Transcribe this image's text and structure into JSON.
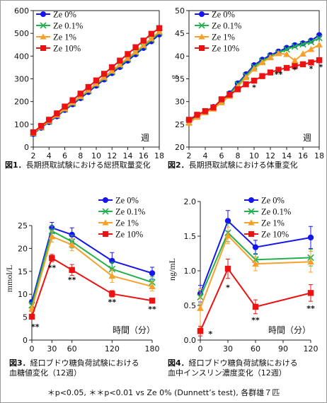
{
  "colors": {
    "Ze 0%": "#1515ee",
    "Ze 0.1%": "#22b14c",
    "Ze 1%": "#f7a02c",
    "Ze 10%": "#ee1111"
  },
  "chart_data": [
    {
      "id": "fig1",
      "type": "line",
      "title": "",
      "xlabel": "週",
      "ylabel": "",
      "xlim": [
        2,
        18
      ],
      "ylim": [
        0,
        600
      ],
      "xticks": [
        2,
        4,
        6,
        8,
        10,
        12,
        14,
        16,
        18
      ],
      "yticks": [
        0,
        100,
        200,
        300,
        400,
        500,
        600
      ],
      "grid": false,
      "legend": "top-left",
      "x": [
        2,
        3,
        4,
        5,
        6,
        7,
        8,
        9,
        10,
        11,
        12,
        13,
        14,
        15,
        16,
        17,
        18
      ],
      "series": [
        {
          "name": "Ze 0%",
          "marker": "circle",
          "values": [
            58,
            85,
            110,
            135,
            163,
            188,
            215,
            242,
            270,
            297,
            325,
            352,
            380,
            408,
            436,
            465,
            495
          ]
        },
        {
          "name": "Ze 0.1%",
          "marker": "x",
          "values": [
            60,
            87,
            112,
            138,
            166,
            192,
            219,
            247,
            275,
            302,
            330,
            358,
            386,
            414,
            442,
            471,
            502
          ]
        },
        {
          "name": "Ze 1%",
          "marker": "triangle",
          "values": [
            62,
            89,
            115,
            141,
            169,
            196,
            223,
            251,
            279,
            307,
            335,
            363,
            391,
            419,
            448,
            477,
            508
          ]
        },
        {
          "name": "Ze 10%",
          "marker": "square",
          "values": [
            65,
            93,
            120,
            148,
            178,
            206,
            235,
            264,
            293,
            322,
            351,
            380,
            409,
            439,
            468,
            498,
            523
          ]
        }
      ],
      "annotations": []
    },
    {
      "id": "fig2",
      "type": "line",
      "title": "",
      "xlabel": "週",
      "ylabel": "g",
      "xlim": [
        2,
        18
      ],
      "ylim": [
        20,
        50
      ],
      "xticks": [
        2,
        4,
        6,
        8,
        10,
        12,
        14,
        16,
        18
      ],
      "yticks": [
        20,
        25,
        30,
        35,
        40,
        45,
        50
      ],
      "grid": false,
      "legend": "top-left",
      "x": [
        1,
        2,
        3,
        4,
        5,
        6,
        7,
        8,
        9,
        10,
        11,
        12,
        13,
        14,
        15,
        16,
        17,
        18
      ],
      "series": [
        {
          "name": "Ze 0%",
          "marker": "circle",
          "values": [
            23.2,
            25.8,
            27.0,
            27.8,
            28.8,
            30.3,
            31.8,
            34.0,
            36.0,
            38.0,
            39.2,
            40.2,
            41.0,
            41.8,
            42.4,
            42.8,
            43.4,
            44.6
          ]
        },
        {
          "name": "Ze 0.1%",
          "marker": "x",
          "values": [
            23.2,
            25.5,
            26.8,
            27.8,
            28.7,
            30.2,
            31.6,
            33.8,
            35.7,
            37.7,
            38.9,
            39.9,
            40.7,
            41.5,
            42.1,
            42.6,
            43.1,
            44.0
          ]
        },
        {
          "name": "Ze 1%",
          "marker": "triangle",
          "values": [
            23.1,
            25.3,
            26.6,
            27.6,
            28.4,
            29.8,
            31.2,
            33.3,
            35.3,
            37.2,
            38.6,
            39.7,
            40.6,
            40.4,
            39.0,
            40.5,
            41.5,
            42.5
          ]
        },
        {
          "name": "Ze 10%",
          "marker": "square",
          "values": [
            23.3,
            26.0,
            27.1,
            27.9,
            28.7,
            30.5,
            31.5,
            32.7,
            33.8,
            34.6,
            35.6,
            36.4,
            37.0,
            37.4,
            37.8,
            38.2,
            38.6,
            39.1
          ]
        }
      ],
      "annotations": [
        {
          "x": 10,
          "y": 32.5,
          "text": "*"
        },
        {
          "x": 13,
          "y": 35.4,
          "text": "**"
        },
        {
          "x": 15,
          "y": 36.4,
          "text": "*"
        },
        {
          "x": 17,
          "y": 36.6,
          "text": "*"
        },
        {
          "x": 18.2,
          "y": 37.0,
          "text": "*"
        }
      ]
    },
    {
      "id": "fig3",
      "type": "line",
      "title": "",
      "xlabel": "時間（分）",
      "ylabel": "mmol/L",
      "xlim": [
        0,
        180
      ],
      "ylim": [
        0,
        25
      ],
      "xticks": [
        0,
        30,
        60,
        120,
        180
      ],
      "yticks": [
        0,
        5,
        10,
        15,
        20,
        25
      ],
      "grid": false,
      "legend": "top-right",
      "x": [
        0,
        30,
        60,
        120,
        180
      ],
      "series": [
        {
          "name": "Ze 0%",
          "marker": "circle",
          "values": [
            8.3,
            24.5,
            23.0,
            17.3,
            14.6
          ],
          "errors": [
            0.5,
            1.2,
            1.5,
            1.8,
            1.3
          ]
        },
        {
          "name": "Ze 0.1%",
          "marker": "x",
          "values": [
            7.6,
            23.8,
            21.5,
            15.5,
            12.6
          ],
          "errors": [
            0.6,
            1.1,
            1.4,
            1.5,
            1.2
          ]
        },
        {
          "name": "Ze 1%",
          "marker": "triangle",
          "values": [
            6.8,
            22.6,
            20.8,
            14.0,
            11.7
          ],
          "errors": [
            0.6,
            1.2,
            1.3,
            1.4,
            1.0
          ]
        },
        {
          "name": "Ze 10%",
          "marker": "square",
          "values": [
            5.1,
            17.9,
            15.3,
            10.1,
            8.6
          ],
          "errors": [
            0.4,
            0.8,
            1.2,
            0.7,
            0.5
          ]
        }
      ],
      "annotations": [
        {
          "x": 5,
          "y": 2.3,
          "text": "**"
        },
        {
          "x": 30,
          "y": 15.2,
          "text": "**"
        },
        {
          "x": 60,
          "y": 12.6,
          "text": "**"
        },
        {
          "x": 120,
          "y": 7.7,
          "text": "**"
        },
        {
          "x": 180,
          "y": 6.2,
          "text": "**"
        }
      ]
    },
    {
      "id": "fig4",
      "type": "line",
      "title": "",
      "xlabel": "時間（分）",
      "ylabel": "ng/mL",
      "xlim": [
        0,
        120
      ],
      "ylim": [
        0,
        2.0
      ],
      "xticks": [
        0,
        30,
        60,
        90,
        120
      ],
      "yticks": [
        "0.0",
        "0.5",
        "1.0",
        "1.5",
        "2.0"
      ],
      "grid": false,
      "legend": "top-right",
      "x": [
        0,
        30,
        60,
        120
      ],
      "series": [
        {
          "name": "Ze 0%",
          "marker": "circle",
          "values": [
            0.67,
            1.72,
            1.34,
            1.48
          ],
          "errors": [
            0.12,
            0.15,
            0.1,
            0.16
          ]
        },
        {
          "name": "Ze 0.1%",
          "marker": "x",
          "values": [
            0.62,
            1.55,
            1.16,
            1.19
          ],
          "errors": [
            0.1,
            0.13,
            0.09,
            0.12
          ]
        },
        {
          "name": "Ze 1%",
          "marker": "triangle",
          "values": [
            0.46,
            1.51,
            1.1,
            1.13
          ],
          "errors": [
            0.28,
            0.12,
            0.1,
            0.15
          ]
        },
        {
          "name": "Ze 10%",
          "marker": "square",
          "values": [
            0.13,
            1.03,
            0.48,
            0.68
          ],
          "errors": [
            0.07,
            0.14,
            0.1,
            0.12
          ]
        }
      ],
      "annotations": [
        {
          "x": 11,
          "y": 0.05,
          "text": "*"
        },
        {
          "x": 30,
          "y": 0.72,
          "text": "*"
        },
        {
          "x": 60,
          "y": 0.25,
          "text": "**"
        },
        {
          "x": 120,
          "y": 0.42,
          "text": "**"
        }
      ]
    }
  ],
  "captions": {
    "fig1": {
      "num": "図1．",
      "text": "長期摂取試験における総摂取量変化"
    },
    "fig2": {
      "num": "図2．",
      "text": "長期摂取試験における体重変化"
    },
    "fig3": {
      "num": "図3．",
      "line1": "経口ブドウ糖負荷試験における",
      "line2": "血糖値変化（12週）"
    },
    "fig4": {
      "num": "図4．",
      "line1": "経口ブドウ糖負荷試験における",
      "line2": "血中インスリン濃度変化（12週）"
    }
  },
  "footnote": "＊p<0.05, ＊＊p<0.01 vs Ze 0% (Dunnett’s test), 各群雄７匹"
}
